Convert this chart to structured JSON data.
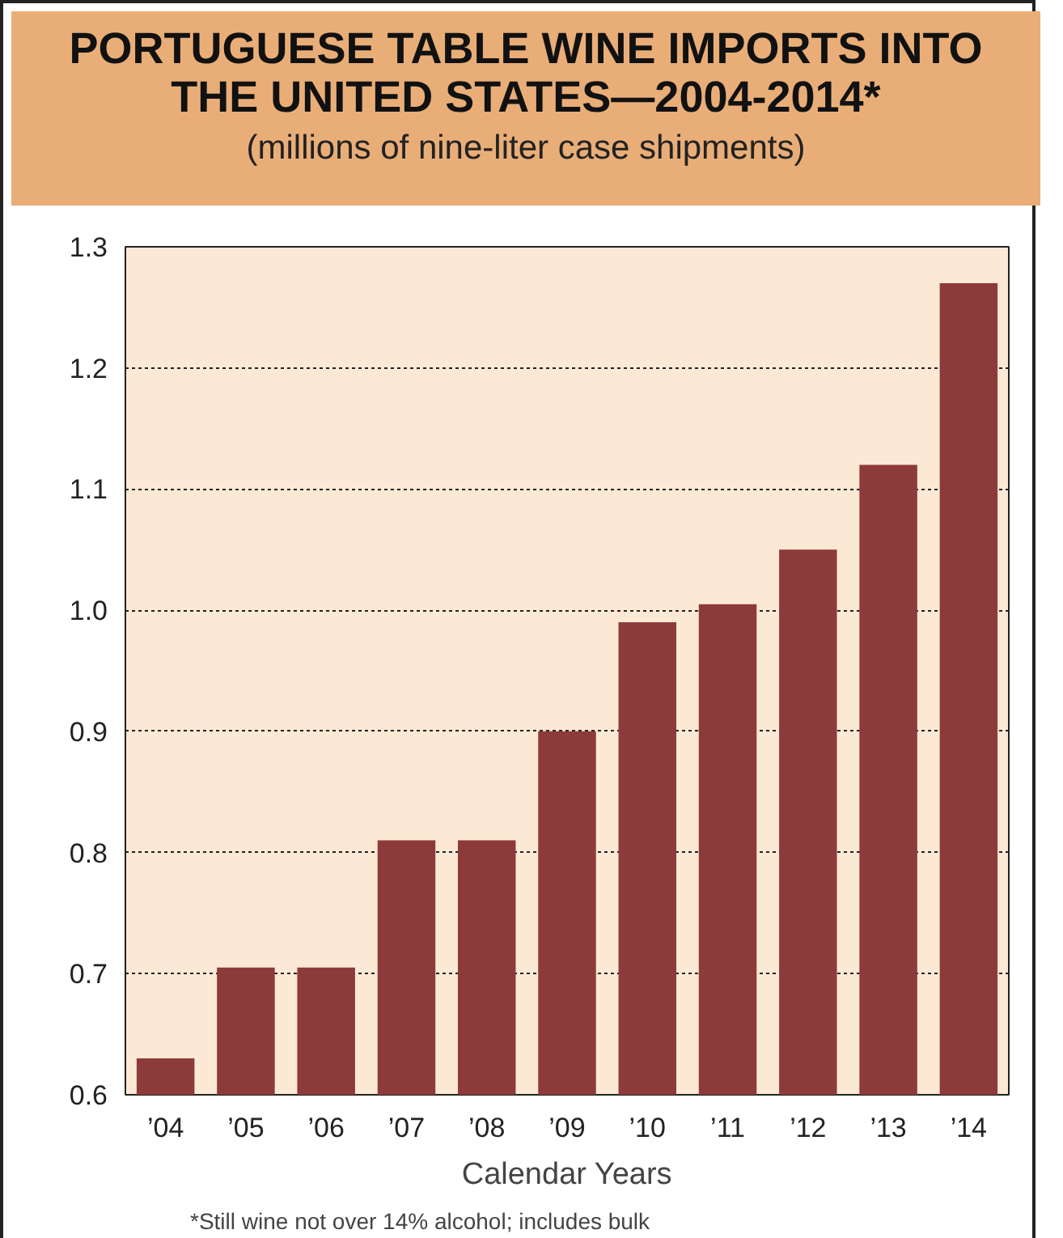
{
  "chart_data": {
    "type": "bar",
    "title": "PORTUGUESE TABLE WINE IMPORTS INTO THE UNITED STATES—2004-2014*",
    "subtitle": "(millions of nine-liter case shipments)",
    "xlabel": "Calendar Years",
    "categories": [
      "’04",
      "’05",
      "’06",
      "’07",
      "’08",
      "’09",
      "’10",
      "’11",
      "’12",
      "’13",
      "’14"
    ],
    "values": [
      0.63,
      0.705,
      0.705,
      0.81,
      0.81,
      0.9,
      0.99,
      1.005,
      1.05,
      1.12,
      1.27
    ],
    "color": "#8c3b3a",
    "ylim": [
      0.6,
      1.3
    ],
    "yticks": [
      0.6,
      0.7,
      0.8,
      0.9,
      {
        "value": 1,
        "label": "1.0"
      },
      1.1,
      1.2,
      1.3
    ],
    "grid": "y",
    "annotations": [
      "*Still wine not over 14% alcohol; includes bulk"
    ]
  }
}
